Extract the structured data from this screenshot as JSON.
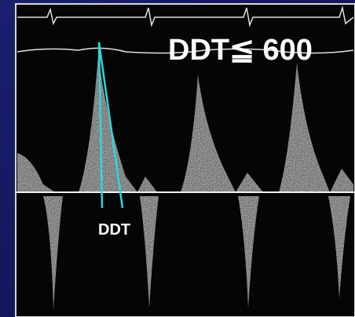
{
  "annotations": {
    "title": "DDT≦ 600",
    "label": "DDT"
  }
}
